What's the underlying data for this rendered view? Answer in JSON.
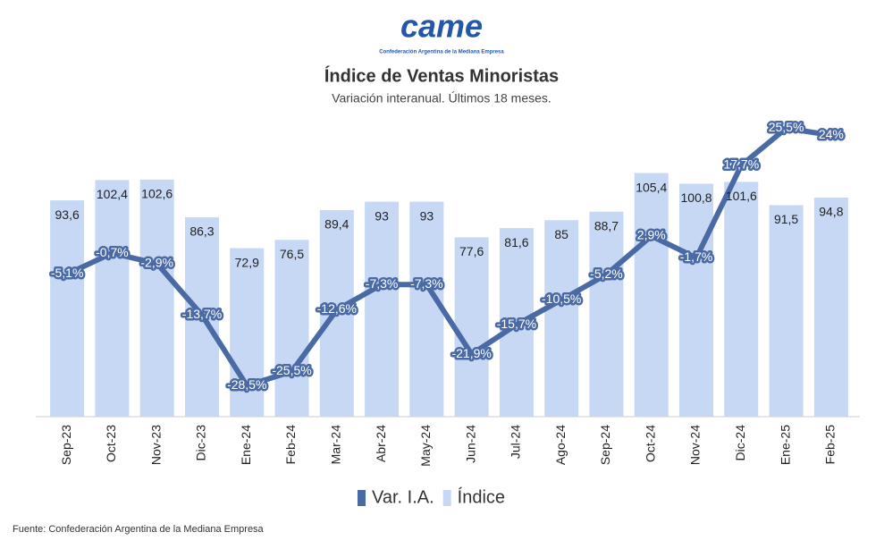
{
  "header": {
    "logo": "came",
    "logo_caption": "Confederación Argentina de la Mediana Empresa"
  },
  "chart_data": {
    "type": "combo",
    "title": "Índice de Ventas Minoristas",
    "subtitle": "Variación interanual. Últimos 18 meses.",
    "categories": [
      "Sep-23",
      "Oct-23",
      "Nov-23",
      "Dic-23",
      "Ene-24",
      "Feb-24",
      "Mar-24",
      "Abr-24",
      "May-24",
      "Jun-24",
      "Jul-24",
      "Ago-24",
      "Sep-24",
      "Oct-24",
      "Nov-24",
      "Dic-24",
      "Ene-25",
      "Feb-25"
    ],
    "series": [
      {
        "name": "Var. I.A.",
        "type": "line",
        "axis": "y2",
        "color": "#4a6aa5",
        "values": [
          -5.1,
          -0.7,
          -2.9,
          -13.7,
          -28.5,
          -25.5,
          -12.6,
          -7.3,
          -7.3,
          -21.9,
          -15.7,
          -10.5,
          -5.2,
          2.9,
          -1.7,
          17.7,
          25.5,
          24
        ],
        "value_labels": [
          "-5,1%",
          "-0,7%",
          "-2,9%",
          "-13,7%",
          "-28,5%",
          "-25,5%",
          "-12,6%",
          "-7,3%",
          "-7,3%",
          "-21,9%",
          "-15,7%",
          "-10,5%",
          "-5,2%",
          "2,9%",
          "-1,7%",
          "17,7%",
          "25,5%",
          "24%"
        ]
      },
      {
        "name": "Índice",
        "type": "bar",
        "color": "#c6d8f3",
        "values": [
          93.6,
          102.4,
          102.6,
          86.3,
          72.9,
          76.5,
          89.4,
          93,
          93,
          77.6,
          81.6,
          85,
          88.7,
          105.4,
          100.8,
          101.6,
          91.5,
          94.8
        ],
        "value_labels": [
          "93,6",
          "102,4",
          "102,6",
          "86,3",
          "72,9",
          "76,5",
          "89,4",
          "93",
          "93",
          "77,6",
          "81,6",
          "85",
          "88,7",
          "105,4",
          "100,8",
          "101,6",
          "91,5",
          "94,8"
        ]
      }
    ],
    "ylim": [
      0,
      130
    ],
    "y2lim": [
      -35,
      28
    ],
    "legend": "bottom"
  },
  "footer": {
    "source": "Fuente: Confederación Argentina de la Mediana Empresa"
  }
}
